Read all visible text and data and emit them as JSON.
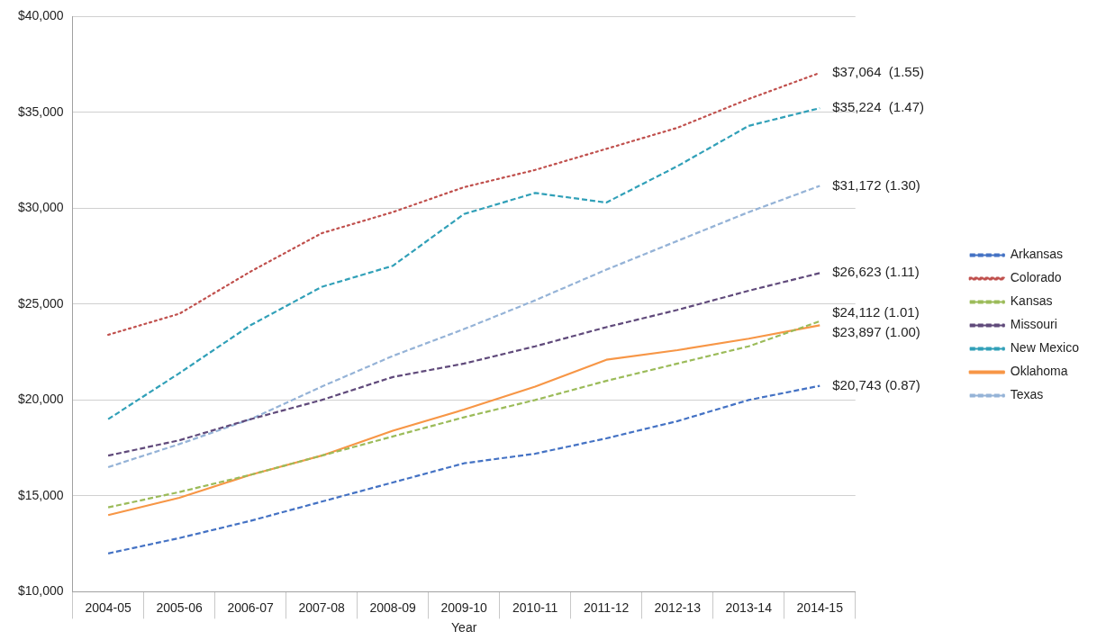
{
  "chart_data": {
    "type": "line",
    "xlabel": "Year",
    "categories": [
      "2004-05",
      "2005-06",
      "2006-07",
      "2007-08",
      "2008-09",
      "2009-10",
      "2010-11",
      "2011-12",
      "2012-13",
      "2013-14",
      "2014-15"
    ],
    "series": [
      {
        "name": "Arkansas",
        "color": "#4472c4",
        "line_style": "dashed",
        "values": [
          12000,
          12800,
          13700,
          14700,
          15700,
          16700,
          17200,
          18000,
          18900,
          20000,
          20743
        ],
        "value_labels": [
          null,
          null,
          null,
          null,
          null,
          null,
          null,
          null,
          null,
          null,
          "$20,743 (0.87)"
        ]
      },
      {
        "name": "Colorado",
        "color": "#c0504d",
        "line_style": "dotted",
        "values": [
          23400,
          24500,
          26700,
          28700,
          29800,
          31100,
          32000,
          33100,
          34200,
          35700,
          37064
        ],
        "value_labels": [
          null,
          null,
          null,
          null,
          null,
          null,
          null,
          null,
          null,
          null,
          "$37,064  (1.55)"
        ]
      },
      {
        "name": "Kansas",
        "color": "#9bbb59",
        "line_style": "dashed",
        "values": [
          14400,
          15200,
          16100,
          17100,
          18100,
          19100,
          20000,
          21000,
          21900,
          22800,
          24112
        ],
        "value_labels": [
          null,
          null,
          null,
          null,
          null,
          null,
          null,
          null,
          null,
          null,
          "$24,112 (1.01)"
        ]
      },
      {
        "name": "Missouri",
        "color": "#604a7b",
        "line_style": "dashed",
        "values": [
          17100,
          17900,
          19000,
          20000,
          21200,
          21900,
          22800,
          23800,
          24700,
          25700,
          26623
        ],
        "value_labels": [
          null,
          null,
          null,
          null,
          null,
          null,
          null,
          null,
          null,
          null,
          "$26,623 (1.11)"
        ]
      },
      {
        "name": "New Mexico",
        "color": "#31a0b8",
        "line_style": "dashed",
        "values": [
          19000,
          21400,
          23900,
          25900,
          27000,
          29700,
          30800,
          30300,
          32200,
          34300,
          35224
        ],
        "value_labels": [
          null,
          null,
          null,
          null,
          null,
          null,
          null,
          null,
          null,
          null,
          "$35,224  (1.47)"
        ]
      },
      {
        "name": "Oklahoma",
        "color": "#f79646",
        "line_style": "solid",
        "values": [
          14000,
          14900,
          16100,
          17100,
          18400,
          19500,
          20700,
          22100,
          22600,
          23200,
          23897
        ],
        "value_labels": [
          null,
          null,
          null,
          null,
          null,
          null,
          null,
          null,
          null,
          null,
          "$23,897 (1.00)"
        ]
      },
      {
        "name": "Texas",
        "color": "#95b3d7",
        "line_style": "dashed",
        "values": [
          16500,
          17700,
          19000,
          20700,
          22300,
          23700,
          25200,
          26800,
          28300,
          29800,
          31172
        ],
        "value_labels": [
          null,
          null,
          null,
          null,
          null,
          null,
          null,
          null,
          null,
          null,
          "$31,172 (1.30)"
        ]
      }
    ],
    "ylim": [
      10000,
      40000
    ],
    "yticks": [
      {
        "value": 10000,
        "label": "$10,000"
      },
      {
        "value": 15000,
        "label": "$15,000"
      },
      {
        "value": 20000,
        "label": "$20,000"
      },
      {
        "value": 25000,
        "label": "$25,000"
      },
      {
        "value": 30000,
        "label": "$30,000"
      },
      {
        "value": 35000,
        "label": "$35,000"
      },
      {
        "value": 40000,
        "label": "$40,000"
      }
    ],
    "grid": "y",
    "legend": "right",
    "marker": "none"
  }
}
